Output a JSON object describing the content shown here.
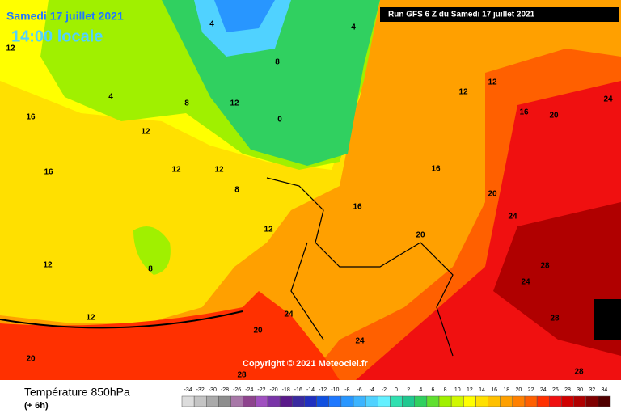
{
  "header": {
    "title": "Samedi 17 juillet 2021",
    "time": "14:00 locale",
    "run": "Run GFS 6 Z du Samedi 17 juillet 2021"
  },
  "copyright": "Copyright © 2021 Meteociel.fr",
  "footer": {
    "variable": "Température 850hPa",
    "step": "(+ 6h)"
  },
  "legend": {
    "ticks": [
      -34,
      -32,
      -30,
      -28,
      -26,
      -24,
      -22,
      -20,
      -18,
      -16,
      -14,
      -12,
      -10,
      -8,
      -6,
      -4,
      -2,
      0,
      2,
      4,
      6,
      8,
      10,
      12,
      14,
      16,
      18,
      20,
      22,
      24,
      26,
      28,
      30,
      32,
      34
    ],
    "colors": [
      "#dcdcdc",
      "#c4c4c4",
      "#aaaaaa",
      "#8e8e8e",
      "#a878a8",
      "#8e448e",
      "#a050c0",
      "#7a34a8",
      "#5a1a8a",
      "#3a2aa0",
      "#2030c0",
      "#1050e0",
      "#1e78ff",
      "#2896ff",
      "#3cb4ff",
      "#50d2ff",
      "#64f0ff",
      "#30e0b0",
      "#20c890",
      "#30d060",
      "#60e030",
      "#a0f000",
      "#d0f800",
      "#ffff00",
      "#ffe000",
      "#ffc000",
      "#ffa000",
      "#ff8000",
      "#ff6000",
      "#ff3000",
      "#f01010",
      "#d00000",
      "#b00000",
      "#800000",
      "#500000"
    ]
  },
  "map_labels": [
    4,
    4,
    12,
    16,
    4,
    8,
    8,
    12,
    0,
    12,
    12,
    12,
    16,
    8,
    12,
    8,
    12,
    12,
    20,
    20,
    24,
    24,
    16,
    20,
    20,
    24,
    28,
    24,
    28,
    24,
    16,
    12,
    16,
    20,
    12,
    28,
    28
  ]
}
